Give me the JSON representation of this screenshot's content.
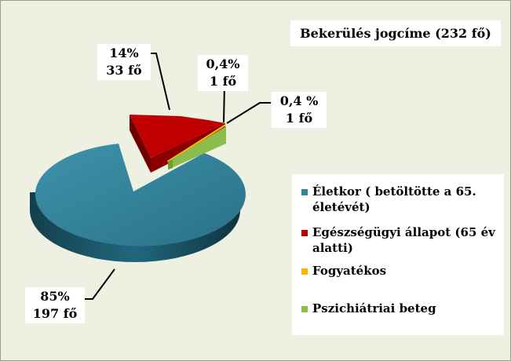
{
  "chart_data": {
    "type": "pie",
    "title": "Bekerülés jogcíme (232 fő)",
    "legend_position": "right",
    "slices": [
      {
        "name": "Életkor ( betöltötte a 65. életévét)",
        "value": 197,
        "percent_label": "85%",
        "count_label": "197 fő",
        "color": "#31849b"
      },
      {
        "name": "Egészségügyi állapot (65 év alatti)",
        "value": 33,
        "percent_label": "14%",
        "count_label": "33 fő",
        "color": "#c00000"
      },
      {
        "name": "Fogyatékos",
        "value": 1,
        "percent_label": "0,4%",
        "count_label": "1 fő",
        "color": "#f5b800"
      },
      {
        "name": "Pszichiátriai beteg",
        "value": 1,
        "percent_label": "0,4 %",
        "count_label": "1 fő",
        "color": "#8cbd4c"
      }
    ]
  }
}
